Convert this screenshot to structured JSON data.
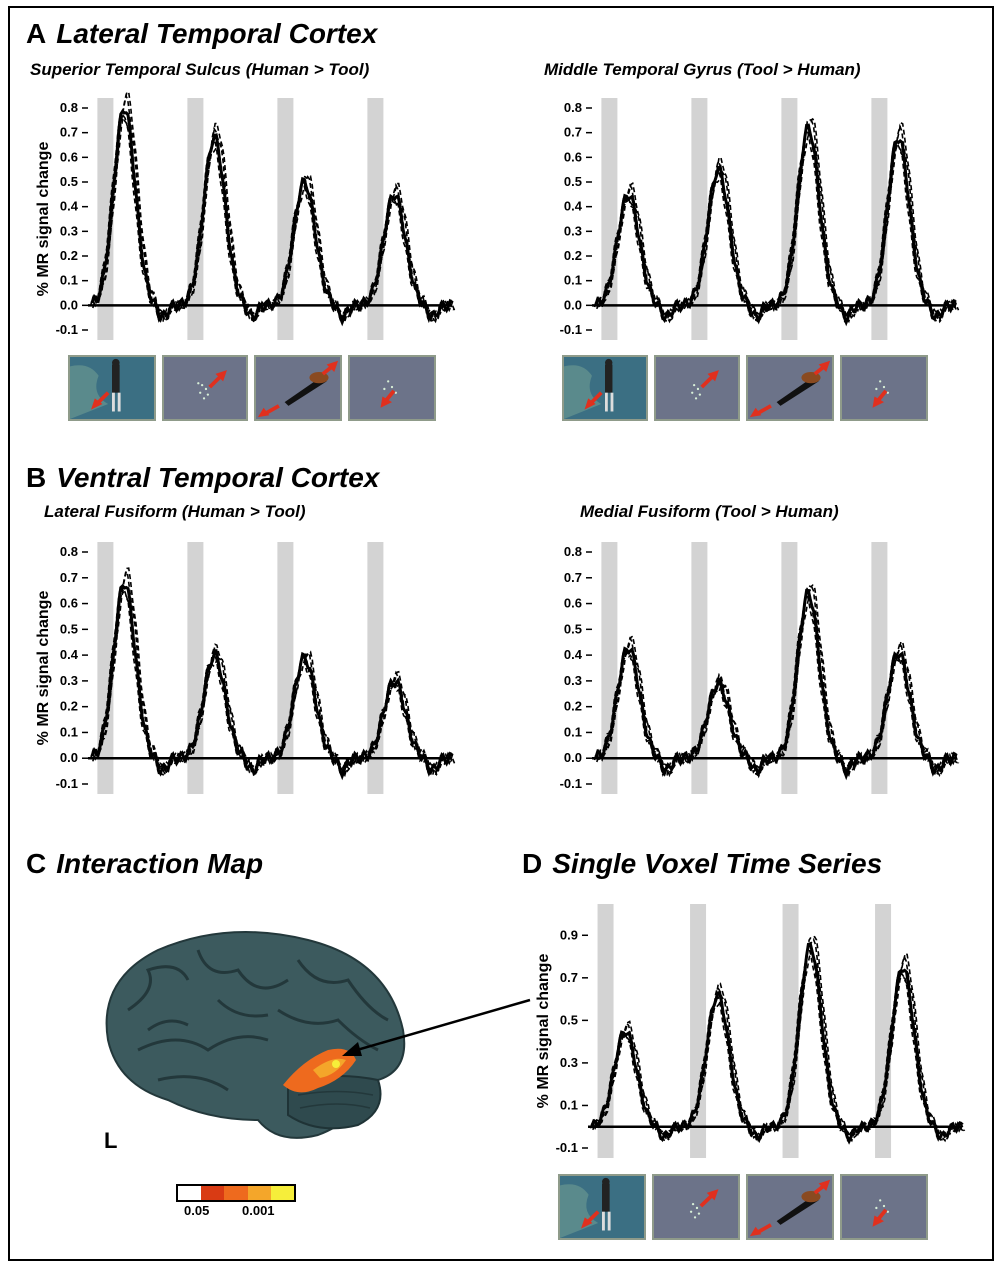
{
  "sections": {
    "A": {
      "letter": "A",
      "title": "Lateral Temporal Cortex"
    },
    "B": {
      "letter": "B",
      "title": "Ventral Temporal Cortex"
    },
    "C": {
      "letter": "C",
      "title": "Interaction Map"
    },
    "D": {
      "letter": "D",
      "title": "Single Voxel Time Series"
    }
  },
  "brain": {
    "hemisphere": "L"
  },
  "colorbar": {
    "labels": [
      "0.05",
      "0.001"
    ],
    "colors": [
      "#ffffff",
      "#d93b14",
      "#ee6a1e",
      "#f4a62a",
      "#f6ee3a"
    ]
  },
  "stimuli": [
    "human-walker",
    "point-light-human",
    "tool",
    "point-light-tool"
  ],
  "chart_data": [
    {
      "type": "line",
      "panel": "A-left",
      "title": "Superior Temporal Sulcus (Human > Tool)",
      "ylabel": "% MR signal change",
      "yticks": [
        "0.8",
        "0.7",
        "0.6",
        "0.5",
        "0.4",
        "0.3",
        "0.2",
        "0.1",
        "0.0",
        "-0.1"
      ],
      "ylim": [
        -0.1,
        0.8
      ],
      "conditions": [
        "human-walker",
        "point-light-human",
        "tool",
        "point-light-tool"
      ],
      "peaks": [
        0.8,
        0.68,
        0.5,
        0.45
      ],
      "show_ylabel": true
    },
    {
      "type": "line",
      "panel": "A-right",
      "title": "Middle Temporal Gyrus (Tool > Human)",
      "ylabel": "",
      "yticks": [
        "0.8",
        "0.7",
        "0.6",
        "0.5",
        "0.4",
        "0.3",
        "0.2",
        "0.1",
        "0.0",
        "-0.1"
      ],
      "ylim": [
        -0.1,
        0.8
      ],
      "conditions": [
        "human-walker",
        "point-light-human",
        "tool",
        "point-light-tool"
      ],
      "peaks": [
        0.45,
        0.55,
        0.72,
        0.68
      ],
      "show_ylabel": false
    },
    {
      "type": "line",
      "panel": "B-left",
      "title": "Lateral Fusiform (Human > Tool)",
      "ylabel": "% MR signal change",
      "yticks": [
        "0.8",
        "0.7",
        "0.6",
        "0.5",
        "0.4",
        "0.3",
        "0.2",
        "0.1",
        "0.0",
        "-0.1"
      ],
      "ylim": [
        -0.1,
        0.8
      ],
      "conditions": [
        "human-walker",
        "point-light-human",
        "tool",
        "point-light-tool"
      ],
      "peaks": [
        0.68,
        0.4,
        0.39,
        0.3
      ],
      "show_ylabel": true
    },
    {
      "type": "line",
      "panel": "B-right",
      "title": "Medial Fusiform (Tool > Human)",
      "ylabel": "",
      "yticks": [
        "0.8",
        "0.7",
        "0.6",
        "0.5",
        "0.4",
        "0.3",
        "0.2",
        "0.1",
        "0.0",
        "-0.1"
      ],
      "ylim": [
        -0.1,
        0.8
      ],
      "conditions": [
        "human-walker",
        "point-light-human",
        "tool",
        "point-light-tool"
      ],
      "peaks": [
        0.43,
        0.29,
        0.64,
        0.41
      ],
      "show_ylabel": false
    },
    {
      "type": "line",
      "panel": "D",
      "title": "",
      "ylabel": "% MR signal change",
      "yticks": [
        "0.9",
        "0.7",
        "0.5",
        "0.3",
        "0.1",
        "-0.1"
      ],
      "ylim": [
        -0.1,
        1.0
      ],
      "conditions": [
        "human-walker",
        "point-light-human",
        "tool",
        "point-light-tool"
      ],
      "peaks": [
        0.45,
        0.62,
        0.85,
        0.75
      ],
      "show_ylabel": true
    }
  ]
}
